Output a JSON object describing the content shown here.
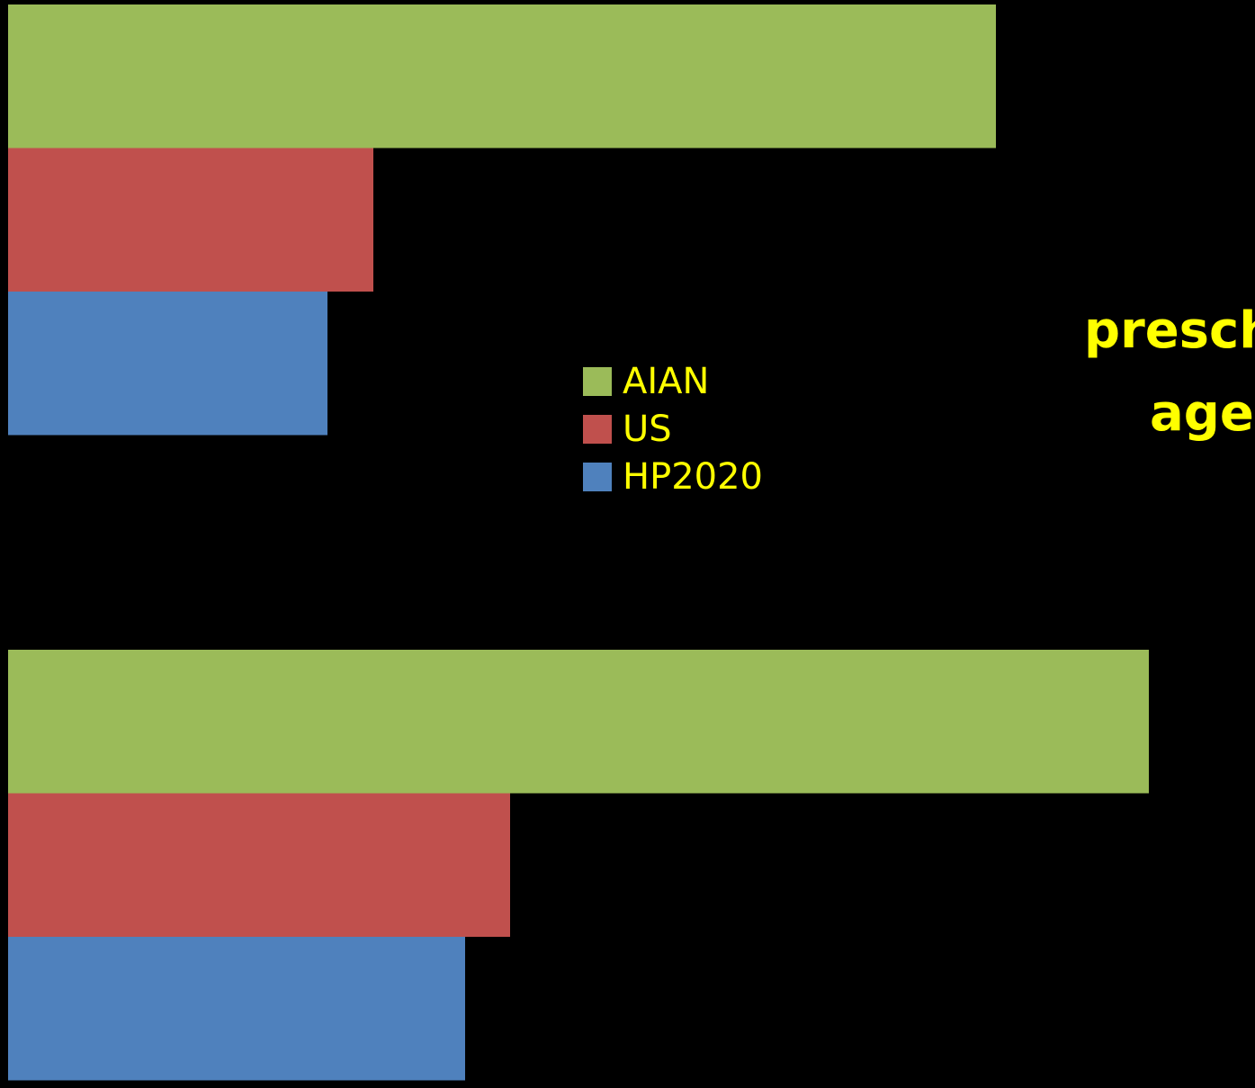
{
  "chart_data": {
    "type": "bar",
    "orientation": "horizontal",
    "categories": [
      "",
      ""
    ],
    "series": [
      {
        "name": "AIAN",
        "color": "#9bbb59",
        "values": [
          1098,
          1268
        ]
      },
      {
        "name": "US",
        "color": "#c0504d",
        "values": [
          406,
          558
        ]
      },
      {
        "name": "HP2020",
        "color": "#4f81bd",
        "values": [
          355,
          508
        ]
      }
    ],
    "legend_position": "middle",
    "grid": false,
    "axes_visible": false,
    "xlim": [
      0,
      1386
    ],
    "background": "#000000",
    "text_color": "#ffff00"
  },
  "side_text": [
    "presch",
    "ages"
  ]
}
